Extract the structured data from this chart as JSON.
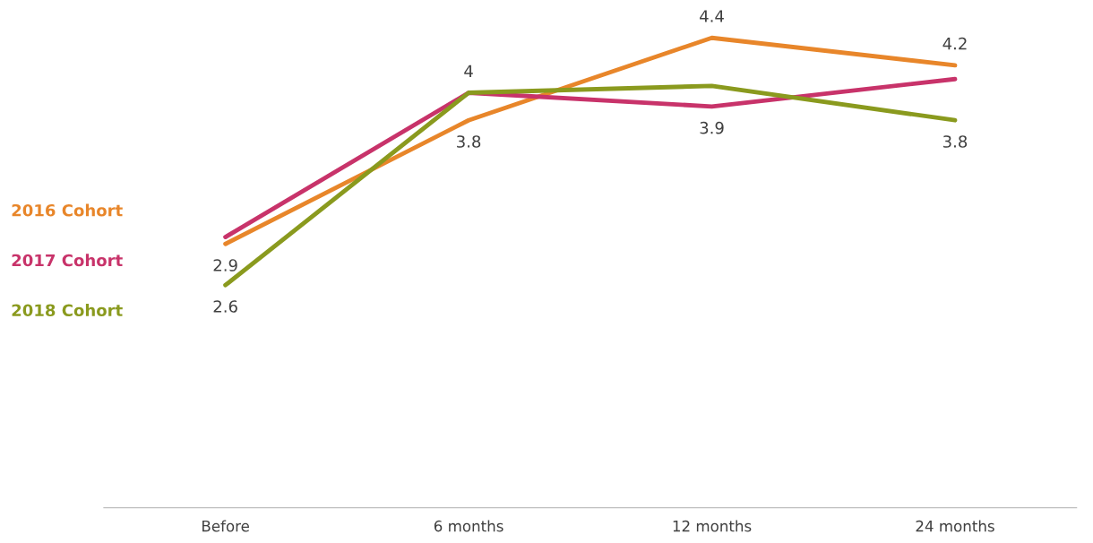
{
  "chart_data": {
    "type": "line",
    "categories": [
      "Before",
      "6 months",
      "12 months",
      "24 months"
    ],
    "series": [
      {
        "name": "2016 Cohort",
        "color": "#e8862a",
        "values": [
          2.9,
          3.8,
          4.4,
          4.2
        ],
        "value_labels": [
          "2.9",
          "3.8",
          "4.4",
          "4.2"
        ]
      },
      {
        "name": "2017 Cohort",
        "color": "#c8336a",
        "values": [
          2.95,
          4.0,
          3.9,
          4.1
        ],
        "value_labels": [
          null,
          "4",
          "3.9",
          null
        ]
      },
      {
        "name": "2018 Cohort",
        "color": "#8a9a1e",
        "values": [
          2.6,
          4.0,
          4.05,
          3.8
        ],
        "value_labels": [
          "2.6",
          null,
          null,
          "3.8"
        ]
      }
    ],
    "tick_labels": "x",
    "legend": "left",
    "grid": false,
    "marker": "none",
    "line_style": "solid"
  }
}
